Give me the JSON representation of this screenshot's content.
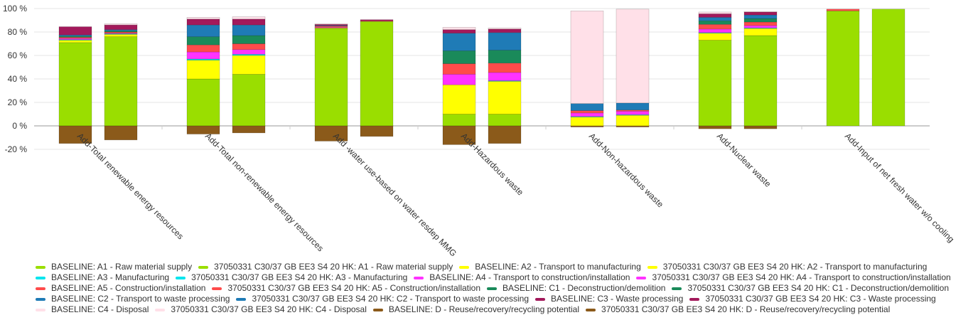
{
  "chart_data": {
    "type": "bar",
    "stacked": true,
    "ylim": [
      -20,
      100
    ],
    "yticks": [
      "-20 %",
      "0 %",
      "20 %",
      "40 %",
      "60 %",
      "80 %",
      "100 %"
    ],
    "ytick_values": [
      -20,
      0,
      20,
      40,
      60,
      80,
      100
    ],
    "grid": true,
    "legend_position": "bottom",
    "categories": [
      "Add-Total renewable energy resources",
      "Add-Total non-renewable energy resources",
      "Add -water use-based on water resdep MMG",
      "Add-Hazardous waste",
      "Add-Non-hazardous waste",
      "Add-Nuclear waste",
      "Add-Input of net fresh water w/o cooling"
    ],
    "stages": [
      {
        "key": "A1",
        "color": "#9ade00"
      },
      {
        "key": "A2",
        "color": "#ffff00"
      },
      {
        "key": "A3",
        "color": "#00e5ee"
      },
      {
        "key": "A4",
        "color": "#ff33ff"
      },
      {
        "key": "A5",
        "color": "#ff4b4b"
      },
      {
        "key": "C1",
        "color": "#1a8a5a"
      },
      {
        "key": "C2",
        "color": "#1f7bb6"
      },
      {
        "key": "C3",
        "color": "#a3195b"
      },
      {
        "key": "C4",
        "color": "#ffe0e8"
      },
      {
        "key": "D",
        "color": "#8b5a1a"
      }
    ],
    "series": [
      {
        "name": "BASELINE",
        "values": [
          {
            "A1": 71,
            "A2": 2,
            "A3": 0.5,
            "A4": 1,
            "A5": 1,
            "C1": 1,
            "C2": 1,
            "C3": 7,
            "C4": 0,
            "D": -15
          },
          {
            "A1": 40,
            "A2": 16,
            "A3": 1,
            "A4": 6,
            "A5": 6,
            "C1": 7,
            "C2": 10,
            "C3": 5,
            "C4": 1.5,
            "D": -7
          },
          {
            "A1": 83,
            "A2": 0.5,
            "A3": 0,
            "A4": 0.5,
            "A5": 1,
            "C1": 0,
            "C2": 0.5,
            "C3": 1,
            "C4": 0.5,
            "D": -13
          },
          {
            "A1": 10,
            "A2": 25,
            "A3": 0,
            "A4": 9,
            "A5": 9,
            "C1": 11,
            "C2": 15,
            "C3": 3,
            "C4": 2,
            "D": -16
          },
          {
            "A1": 0,
            "A2": 7.5,
            "A3": 0.5,
            "A4": 3,
            "A5": 2,
            "C1": 0,
            "C2": 6,
            "C3": 0,
            "C4": 79,
            "D": -1
          },
          {
            "A1": 73,
            "A2": 6,
            "A3": 0.5,
            "A4": 3,
            "A5": 4,
            "C1": 3,
            "C2": 3,
            "C3": 3,
            "C4": 1.5,
            "D": -2.5
          },
          {
            "A1": 98,
            "A2": 0,
            "A3": 0,
            "A4": 0,
            "A5": 1.5,
            "C1": 0,
            "C2": 0,
            "C3": 0,
            "C4": 0,
            "D": 0
          }
        ]
      },
      {
        "name": "37050331 C30/37 GB EE3 S4 20 HK",
        "values": [
          {
            "A1": 76,
            "A2": 2,
            "A3": 0.5,
            "A4": 0.5,
            "A5": 1,
            "C1": 1,
            "C2": 1,
            "C3": 4,
            "C4": 1,
            "D": -12
          },
          {
            "A1": 44,
            "A2": 16,
            "A3": 1,
            "A4": 4,
            "A5": 5,
            "C1": 7,
            "C2": 9,
            "C3": 5,
            "C4": 2,
            "D": -6
          },
          {
            "A1": 89,
            "A2": 0,
            "A3": 0,
            "A4": 0,
            "A5": 0.5,
            "C1": 0,
            "C2": 0,
            "C3": 1,
            "C4": 0,
            "D": -9
          },
          {
            "A1": 10,
            "A2": 28,
            "A3": 0.5,
            "A4": 7,
            "A5": 8,
            "C1": 11,
            "C2": 15,
            "C3": 3,
            "C4": 1,
            "D": -15
          },
          {
            "A1": 0,
            "A2": 9,
            "A3": 0.5,
            "A4": 3,
            "A5": 1,
            "C1": 0,
            "C2": 6,
            "C3": 0,
            "C4": 80,
            "D": -1
          },
          {
            "A1": 77,
            "A2": 6,
            "A3": 0.5,
            "A4": 2,
            "A5": 3,
            "C1": 3,
            "C2": 3,
            "C3": 2.5,
            "C4": 0.5,
            "D": -2.5
          },
          {
            "A1": 99.5,
            "A2": 0,
            "A3": 0,
            "A4": 0,
            "A5": 0,
            "C1": 0,
            "C2": 0,
            "C3": 0,
            "C4": 0,
            "D": 0
          }
        ]
      }
    ],
    "legend": [
      [
        "BASELINE: A1 - Raw material supply",
        "37050331 C30/37 GB EE3 S4 20 HK: A1 - Raw material supply",
        "BASELINE: A2 - Transport to manufacturing",
        "37050331 C30/37 GB EE3 S4 20 HK: A2 - Transport to manufacturing"
      ],
      [
        "BASELINE: A3 - Manufacturing",
        "37050331 C30/37 GB EE3 S4 20 HK: A3 - Manufacturing",
        "BASELINE: A4 - Transport to construction/installation",
        "37050331 C30/37 GB EE3 S4 20 HK: A4 - Transport to construction/installation"
      ],
      [
        "BASELINE: A5 - Construction/installation",
        "37050331 C30/37 GB EE3 S4 20 HK: A5 - Construction/installation",
        "BASELINE: C1 - Deconstruction/demolition",
        "37050331 C30/37 GB EE3 S4 20 HK: C1 - Deconstruction/demolition"
      ],
      [
        "BASELINE: C2 - Transport to waste processing",
        "37050331 C30/37 GB EE3 S4 20 HK: C2 - Transport to waste processing",
        "BASELINE: C3 - Waste processing",
        "37050331 C30/37 GB EE3 S4 20 HK: C3 - Waste processing"
      ],
      [
        "BASELINE: C4 - Disposal",
        "37050331 C30/37 GB EE3 S4 20 HK: C4 - Disposal",
        "BASELINE: D - Reuse/recovery/recycling potential",
        "37050331 C30/37 GB EE3 S4 20 HK: D - Reuse/recovery/recycling potential"
      ]
    ]
  }
}
